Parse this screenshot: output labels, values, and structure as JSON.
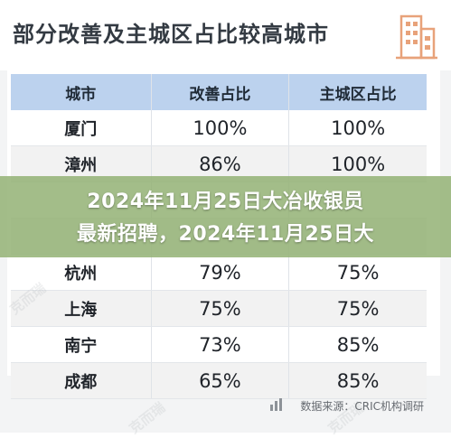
{
  "header": {
    "title": "部分改善及主城区占比较高城市"
  },
  "table": {
    "columns": [
      "城市",
      "改善占比",
      "主城区占比"
    ],
    "rows": [
      {
        "city": "厦门",
        "improve": "100%",
        "main": "100%"
      },
      {
        "city": "漳州",
        "improve": "86%",
        "main": "100%"
      },
      {
        "city": "",
        "improve": "",
        "main": ""
      },
      {
        "city": "",
        "improve": "",
        "main": ""
      },
      {
        "city": "杭州",
        "improve": "79%",
        "main": "75%"
      },
      {
        "city": "上海",
        "improve": "75%",
        "main": "75%"
      },
      {
        "city": "南宁",
        "improve": "73%",
        "main": "85%"
      },
      {
        "city": "成都",
        "improve": "65%",
        "main": "85%"
      }
    ]
  },
  "overlay": {
    "line1": "2024年11月25日大冶收银员",
    "line2": "最新招聘，2024年11月25日大"
  },
  "source": {
    "text": "数据来源：CRIC机构调研"
  },
  "watermark": {
    "text": "克而瑞"
  },
  "colors": {
    "header_row": "#bcd2ee",
    "overlay": "#94b276",
    "title": "#333a42"
  }
}
